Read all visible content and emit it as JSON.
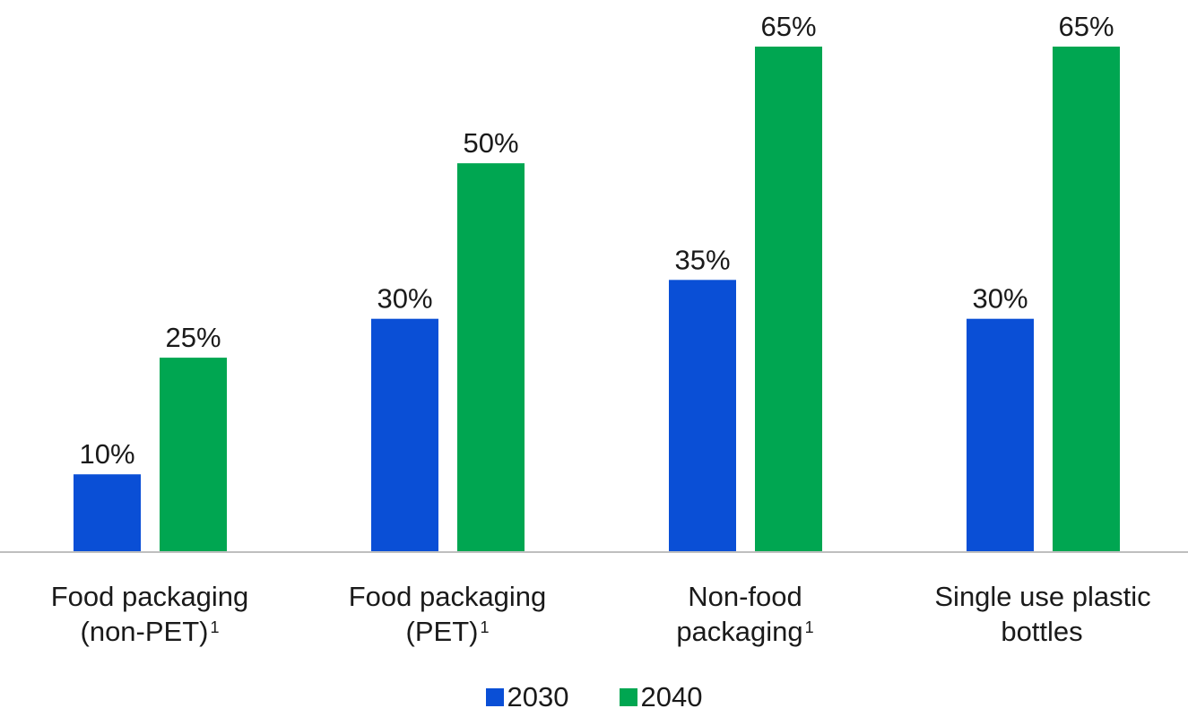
{
  "chart_data": {
    "type": "bar",
    "categories": [
      {
        "line1": "Food packaging",
        "line2": "(non-PET)",
        "footnote": "1"
      },
      {
        "line1": "Food packaging",
        "line2": "(PET)",
        "footnote": "1"
      },
      {
        "line1": "Non-food",
        "line2": "packaging",
        "footnote": "1"
      },
      {
        "line1": "Single use plastic",
        "line2": "bottles",
        "footnote": ""
      }
    ],
    "series": [
      {
        "name": "2030",
        "color": "#0a4fd6",
        "values": [
          10,
          30,
          35,
          30
        ],
        "labels": [
          "10%",
          "30%",
          "35%",
          "30%"
        ]
      },
      {
        "name": "2040",
        "color": "#00a651",
        "values": [
          25,
          50,
          65,
          65
        ],
        "labels": [
          "25%",
          "50%",
          "65%",
          "65%"
        ]
      }
    ],
    "ylim": [
      0,
      70
    ],
    "grid": false,
    "legend_position": "bottom"
  }
}
